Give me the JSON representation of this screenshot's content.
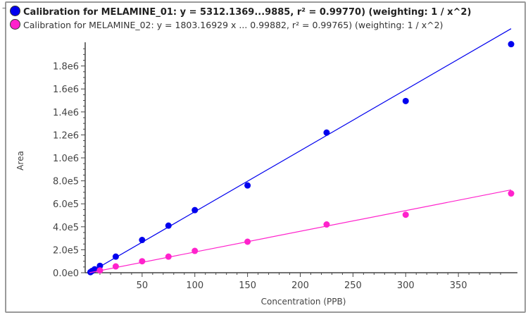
{
  "legend": {
    "collapse_icon": "minus-icon",
    "items": [
      {
        "label": "Calibration for MELAMINE_01: y = 5312.1369...9885, r² = 0.99770)  (weighting: 1 / x^2)",
        "color": "#0000ee"
      },
      {
        "label": "Calibration for MELAMINE_02: y = 1803.16929 x ... 0.99882, r² = 0.99765)  (weighting: 1 / x^2)",
        "color": "#ff22cc"
      }
    ]
  },
  "chart_data": {
    "type": "scatter",
    "xlabel": "Concentration (PPB)",
    "ylabel": "Area",
    "xlim": [
      -4,
      406
    ],
    "ylim": [
      0,
      2080000
    ],
    "x_ticks": [
      50,
      100,
      150,
      200,
      250,
      300,
      350
    ],
    "x_tick_labels": [
      "50",
      "100",
      "150",
      "200",
      "250",
      "300",
      "350"
    ],
    "y_ticks": [
      0,
      200000,
      400000,
      600000,
      800000,
      1000000,
      1200000,
      1400000,
      1600000,
      1800000
    ],
    "y_tick_labels": [
      "0.0e0",
      "2.0e5",
      "4.0e5",
      "6.0e5",
      "8.0e5",
      "1.0e6",
      "1.2e6",
      "1.4e6",
      "1.6e6",
      "1.8e6"
    ],
    "grid": false,
    "legend_position": "top",
    "series": [
      {
        "name": "Calibration for MELAMINE_01",
        "color": "#0000ee",
        "fit_slope": 5312.1369,
        "x": [
          1,
          2.5,
          5,
          10,
          25,
          50,
          75,
          100,
          150,
          225,
          300,
          400
        ],
        "y": [
          5000,
          15000,
          30000,
          60000,
          140000,
          285000,
          410000,
          545000,
          760000,
          1220000,
          1495000,
          1990000
        ]
      },
      {
        "name": "Calibration for MELAMINE_02",
        "color": "#ff22cc",
        "fit_slope": 1803.16929,
        "x": [
          10,
          25,
          50,
          75,
          100,
          150,
          225,
          300,
          400
        ],
        "y": [
          20000,
          55000,
          100000,
          140000,
          190000,
          270000,
          420000,
          505000,
          690000
        ]
      }
    ]
  }
}
